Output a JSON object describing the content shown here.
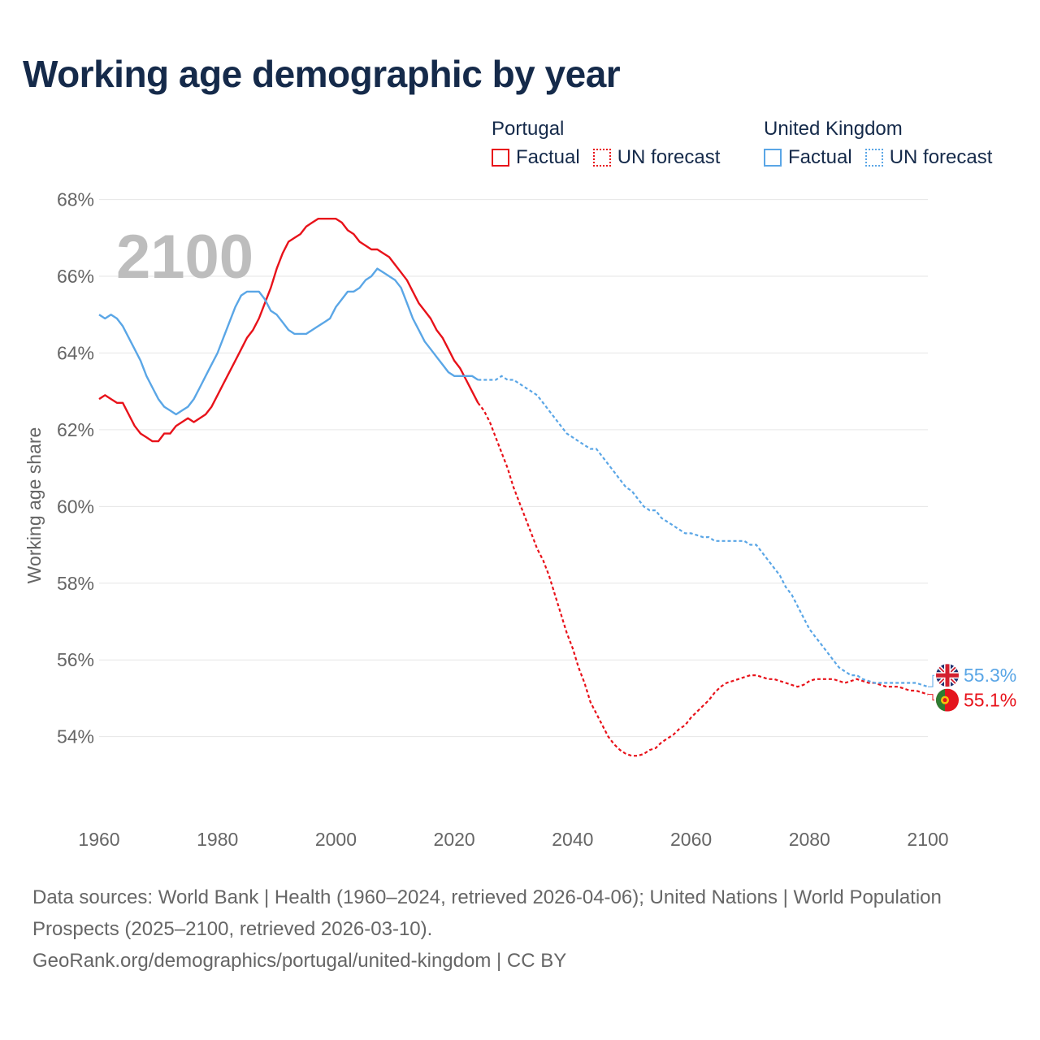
{
  "title": "Working age demographic by year",
  "legend": {
    "portugal": {
      "name": "Portugal",
      "factual": "Factual",
      "forecast": "UN forecast"
    },
    "uk": {
      "name": "United Kingdom",
      "factual": "Factual",
      "forecast": "UN forecast"
    }
  },
  "footer": {
    "sources": "Data sources: World Bank | Health (1960–2024, retrieved 2026-04-06); United Nations | World Population Prospects (2025–2100, retrieved 2026-03-10).",
    "url": "GeoRank.org/demographics/portugal/united-kingdom | CC BY"
  },
  "chart_data": {
    "type": "line",
    "title": "Working age demographic by year",
    "ylabel": "Working age share",
    "xlabel": "",
    "year_label": "2100",
    "xlim": [
      1960,
      2100
    ],
    "ylim": [
      52.7,
      68.5
    ],
    "x_ticks": [
      1960,
      1980,
      2000,
      2020,
      2040,
      2060,
      2080,
      2100
    ],
    "y_ticks": [
      54,
      56,
      58,
      60,
      62,
      64,
      66,
      68
    ],
    "y_tick_labels": [
      "54%",
      "56%",
      "58%",
      "60%",
      "62%",
      "64%",
      "66%",
      "68%"
    ],
    "colors": {
      "portugal": "#e8121a",
      "uk": "#5aa6e6"
    },
    "series": [
      {
        "name": "Portugal",
        "key": "portugal",
        "color": "#e8121a",
        "end_label": "55.1%",
        "flag_icon": "portugal-flag-icon",
        "factual": [
          [
            1960,
            62.8
          ],
          [
            1961,
            62.9
          ],
          [
            1962,
            62.8
          ],
          [
            1963,
            62.7
          ],
          [
            1964,
            62.7
          ],
          [
            1965,
            62.4
          ],
          [
            1966,
            62.1
          ],
          [
            1967,
            61.9
          ],
          [
            1968,
            61.8
          ],
          [
            1969,
            61.7
          ],
          [
            1970,
            61.7
          ],
          [
            1971,
            61.9
          ],
          [
            1972,
            61.9
          ],
          [
            1973,
            62.1
          ],
          [
            1974,
            62.2
          ],
          [
            1975,
            62.3
          ],
          [
            1976,
            62.2
          ],
          [
            1977,
            62.3
          ],
          [
            1978,
            62.4
          ],
          [
            1979,
            62.6
          ],
          [
            1980,
            62.9
          ],
          [
            1981,
            63.2
          ],
          [
            1982,
            63.5
          ],
          [
            1983,
            63.8
          ],
          [
            1984,
            64.1
          ],
          [
            1985,
            64.4
          ],
          [
            1986,
            64.6
          ],
          [
            1987,
            64.9
          ],
          [
            1988,
            65.3
          ],
          [
            1989,
            65.7
          ],
          [
            1990,
            66.2
          ],
          [
            1991,
            66.6
          ],
          [
            1992,
            66.9
          ],
          [
            1993,
            67.0
          ],
          [
            1994,
            67.1
          ],
          [
            1995,
            67.3
          ],
          [
            1996,
            67.4
          ],
          [
            1997,
            67.5
          ],
          [
            1998,
            67.5
          ],
          [
            1999,
            67.5
          ],
          [
            2000,
            67.5
          ],
          [
            2001,
            67.4
          ],
          [
            2002,
            67.2
          ],
          [
            2003,
            67.1
          ],
          [
            2004,
            66.9
          ],
          [
            2005,
            66.8
          ],
          [
            2006,
            66.7
          ],
          [
            2007,
            66.7
          ],
          [
            2008,
            66.6
          ],
          [
            2009,
            66.5
          ],
          [
            2010,
            66.3
          ],
          [
            2011,
            66.1
          ],
          [
            2012,
            65.9
          ],
          [
            2013,
            65.6
          ],
          [
            2014,
            65.3
          ],
          [
            2015,
            65.1
          ],
          [
            2016,
            64.9
          ],
          [
            2017,
            64.6
          ],
          [
            2018,
            64.4
          ],
          [
            2019,
            64.1
          ],
          [
            2020,
            63.8
          ],
          [
            2021,
            63.6
          ],
          [
            2022,
            63.3
          ],
          [
            2023,
            63.0
          ],
          [
            2024,
            62.7
          ]
        ],
        "forecast": [
          [
            2024,
            62.7
          ],
          [
            2025,
            62.5
          ],
          [
            2026,
            62.2
          ],
          [
            2027,
            61.8
          ],
          [
            2028,
            61.4
          ],
          [
            2029,
            61.0
          ],
          [
            2030,
            60.5
          ],
          [
            2031,
            60.1
          ],
          [
            2032,
            59.7
          ],
          [
            2033,
            59.3
          ],
          [
            2034,
            58.9
          ],
          [
            2035,
            58.6
          ],
          [
            2036,
            58.2
          ],
          [
            2037,
            57.7
          ],
          [
            2038,
            57.2
          ],
          [
            2039,
            56.7
          ],
          [
            2040,
            56.3
          ],
          [
            2041,
            55.8
          ],
          [
            2042,
            55.4
          ],
          [
            2043,
            54.9
          ],
          [
            2044,
            54.6
          ],
          [
            2045,
            54.3
          ],
          [
            2046,
            54.0
          ],
          [
            2047,
            53.8
          ],
          [
            2048,
            53.65
          ],
          [
            2049,
            53.55
          ],
          [
            2050,
            53.5
          ],
          [
            2051,
            53.5
          ],
          [
            2052,
            53.55
          ],
          [
            2053,
            53.65
          ],
          [
            2054,
            53.7
          ],
          [
            2055,
            53.85
          ],
          [
            2056,
            53.95
          ],
          [
            2057,
            54.05
          ],
          [
            2058,
            54.2
          ],
          [
            2059,
            54.3
          ],
          [
            2060,
            54.5
          ],
          [
            2061,
            54.65
          ],
          [
            2062,
            54.8
          ],
          [
            2063,
            54.95
          ],
          [
            2064,
            55.15
          ],
          [
            2065,
            55.3
          ],
          [
            2066,
            55.4
          ],
          [
            2067,
            55.45
          ],
          [
            2068,
            55.5
          ],
          [
            2069,
            55.55
          ],
          [
            2070,
            55.6
          ],
          [
            2071,
            55.6
          ],
          [
            2072,
            55.55
          ],
          [
            2073,
            55.5
          ],
          [
            2074,
            55.5
          ],
          [
            2075,
            55.45
          ],
          [
            2076,
            55.4
          ],
          [
            2077,
            55.35
          ],
          [
            2078,
            55.3
          ],
          [
            2079,
            55.35
          ],
          [
            2080,
            55.45
          ],
          [
            2081,
            55.5
          ],
          [
            2082,
            55.5
          ],
          [
            2083,
            55.5
          ],
          [
            2084,
            55.5
          ],
          [
            2085,
            55.45
          ],
          [
            2086,
            55.4
          ],
          [
            2087,
            55.45
          ],
          [
            2088,
            55.5
          ],
          [
            2089,
            55.45
          ],
          [
            2090,
            55.4
          ],
          [
            2091,
            55.4
          ],
          [
            2092,
            55.35
          ],
          [
            2093,
            55.3
          ],
          [
            2094,
            55.3
          ],
          [
            2095,
            55.3
          ],
          [
            2096,
            55.25
          ],
          [
            2097,
            55.2
          ],
          [
            2098,
            55.2
          ],
          [
            2099,
            55.15
          ],
          [
            2100,
            55.1
          ]
        ]
      },
      {
        "name": "United Kingdom",
        "key": "uk",
        "color": "#5aa6e6",
        "end_label": "55.3%",
        "flag_icon": "uk-flag-icon",
        "factual": [
          [
            1960,
            65.0
          ],
          [
            1961,
            64.9
          ],
          [
            1962,
            65.0
          ],
          [
            1963,
            64.9
          ],
          [
            1964,
            64.7
          ],
          [
            1965,
            64.4
          ],
          [
            1966,
            64.1
          ],
          [
            1967,
            63.8
          ],
          [
            1968,
            63.4
          ],
          [
            1969,
            63.1
          ],
          [
            1970,
            62.8
          ],
          [
            1971,
            62.6
          ],
          [
            1972,
            62.5
          ],
          [
            1973,
            62.4
          ],
          [
            1974,
            62.5
          ],
          [
            1975,
            62.6
          ],
          [
            1976,
            62.8
          ],
          [
            1977,
            63.1
          ],
          [
            1978,
            63.4
          ],
          [
            1979,
            63.7
          ],
          [
            1980,
            64.0
          ],
          [
            1981,
            64.4
          ],
          [
            1982,
            64.8
          ],
          [
            1983,
            65.2
          ],
          [
            1984,
            65.5
          ],
          [
            1985,
            65.6
          ],
          [
            1986,
            65.6
          ],
          [
            1987,
            65.6
          ],
          [
            1988,
            65.4
          ],
          [
            1989,
            65.1
          ],
          [
            1990,
            65.0
          ],
          [
            1991,
            64.8
          ],
          [
            1992,
            64.6
          ],
          [
            1993,
            64.5
          ],
          [
            1994,
            64.5
          ],
          [
            1995,
            64.5
          ],
          [
            1996,
            64.6
          ],
          [
            1997,
            64.7
          ],
          [
            1998,
            64.8
          ],
          [
            1999,
            64.9
          ],
          [
            2000,
            65.2
          ],
          [
            2001,
            65.4
          ],
          [
            2002,
            65.6
          ],
          [
            2003,
            65.6
          ],
          [
            2004,
            65.7
          ],
          [
            2005,
            65.9
          ],
          [
            2006,
            66.0
          ],
          [
            2007,
            66.2
          ],
          [
            2008,
            66.1
          ],
          [
            2009,
            66.0
          ],
          [
            2010,
            65.9
          ],
          [
            2011,
            65.7
          ],
          [
            2012,
            65.3
          ],
          [
            2013,
            64.9
          ],
          [
            2014,
            64.6
          ],
          [
            2015,
            64.3
          ],
          [
            2016,
            64.1
          ],
          [
            2017,
            63.9
          ],
          [
            2018,
            63.7
          ],
          [
            2019,
            63.5
          ],
          [
            2020,
            63.4
          ],
          [
            2021,
            63.4
          ],
          [
            2022,
            63.4
          ],
          [
            2023,
            63.4
          ],
          [
            2024,
            63.3
          ]
        ],
        "forecast": [
          [
            2024,
            63.3
          ],
          [
            2025,
            63.3
          ],
          [
            2026,
            63.3
          ],
          [
            2027,
            63.3
          ],
          [
            2028,
            63.4
          ],
          [
            2029,
            63.3
          ],
          [
            2030,
            63.3
          ],
          [
            2031,
            63.2
          ],
          [
            2032,
            63.1
          ],
          [
            2033,
            63.0
          ],
          [
            2034,
            62.9
          ],
          [
            2035,
            62.7
          ],
          [
            2036,
            62.5
          ],
          [
            2037,
            62.3
          ],
          [
            2038,
            62.1
          ],
          [
            2039,
            61.9
          ],
          [
            2040,
            61.8
          ],
          [
            2041,
            61.7
          ],
          [
            2042,
            61.6
          ],
          [
            2043,
            61.5
          ],
          [
            2044,
            61.5
          ],
          [
            2045,
            61.3
          ],
          [
            2046,
            61.1
          ],
          [
            2047,
            60.9
          ],
          [
            2048,
            60.7
          ],
          [
            2049,
            60.5
          ],
          [
            2050,
            60.4
          ],
          [
            2051,
            60.2
          ],
          [
            2052,
            60.0
          ],
          [
            2053,
            59.9
          ],
          [
            2054,
            59.9
          ],
          [
            2055,
            59.7
          ],
          [
            2056,
            59.6
          ],
          [
            2057,
            59.5
          ],
          [
            2058,
            59.4
          ],
          [
            2059,
            59.3
          ],
          [
            2060,
            59.3
          ],
          [
            2061,
            59.25
          ],
          [
            2062,
            59.2
          ],
          [
            2063,
            59.2
          ],
          [
            2064,
            59.1
          ],
          [
            2065,
            59.1
          ],
          [
            2066,
            59.1
          ],
          [
            2067,
            59.1
          ],
          [
            2068,
            59.1
          ],
          [
            2069,
            59.1
          ],
          [
            2070,
            59.0
          ],
          [
            2071,
            59.0
          ],
          [
            2072,
            58.8
          ],
          [
            2073,
            58.6
          ],
          [
            2074,
            58.4
          ],
          [
            2075,
            58.2
          ],
          [
            2076,
            57.9
          ],
          [
            2077,
            57.7
          ],
          [
            2078,
            57.4
          ],
          [
            2079,
            57.1
          ],
          [
            2080,
            56.8
          ],
          [
            2081,
            56.6
          ],
          [
            2082,
            56.4
          ],
          [
            2083,
            56.2
          ],
          [
            2084,
            56.0
          ],
          [
            2085,
            55.8
          ],
          [
            2086,
            55.7
          ],
          [
            2087,
            55.6
          ],
          [
            2088,
            55.6
          ],
          [
            2089,
            55.5
          ],
          [
            2090,
            55.45
          ],
          [
            2091,
            55.4
          ],
          [
            2092,
            55.4
          ],
          [
            2093,
            55.4
          ],
          [
            2094,
            55.4
          ],
          [
            2095,
            55.4
          ],
          [
            2096,
            55.4
          ],
          [
            2097,
            55.4
          ],
          [
            2098,
            55.4
          ],
          [
            2099,
            55.35
          ],
          [
            2100,
            55.3
          ]
        ]
      }
    ]
  }
}
